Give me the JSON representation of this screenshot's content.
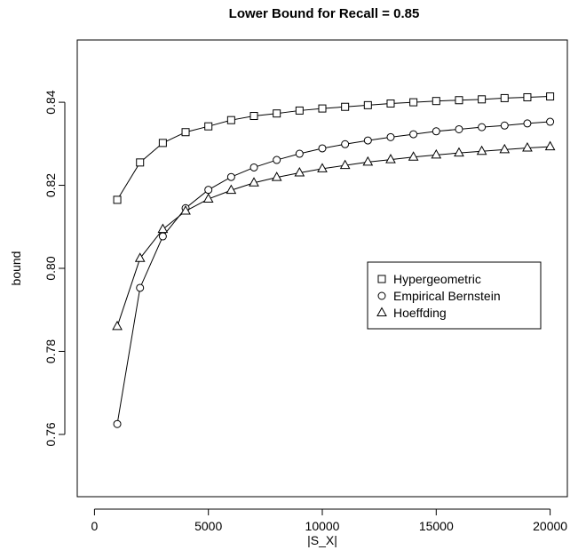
{
  "chart_data": {
    "type": "line",
    "title": "Lower Bound for Recall = 0.85",
    "xlabel": "|S_X|",
    "ylabel": "bound",
    "xlim": [
      0,
      20000
    ],
    "ylim": [
      0.745,
      0.855
    ],
    "x_ticks": [
      0,
      5000,
      10000,
      15000,
      20000
    ],
    "y_ticks": [
      0.76,
      0.78,
      0.8,
      0.82,
      0.84
    ],
    "x_tick_labels": [
      "0",
      "5000",
      "10000",
      "15000",
      "20000"
    ],
    "y_tick_labels": [
      "0.76",
      "0.78",
      "0.80",
      "0.82",
      "0.84"
    ],
    "grid": false,
    "legend_position": "center-right",
    "x": [
      1000,
      2000,
      3000,
      4000,
      5000,
      6000,
      7000,
      8000,
      9000,
      10000,
      11000,
      12000,
      13000,
      14000,
      15000,
      16000,
      17000,
      18000,
      19000,
      20000
    ],
    "series": [
      {
        "name": "Hypergeometric",
        "marker": "square",
        "values": [
          0.8165,
          0.8255,
          0.8302,
          0.8328,
          0.8342,
          0.8357,
          0.8367,
          0.8373,
          0.838,
          0.8385,
          0.8389,
          0.8393,
          0.8397,
          0.84,
          0.8403,
          0.8405,
          0.8407,
          0.841,
          0.8412,
          0.8414
        ]
      },
      {
        "name": "Empirical Bernstein",
        "marker": "circle",
        "values": [
          0.7625,
          0.7953,
          0.8077,
          0.8145,
          0.8189,
          0.822,
          0.8243,
          0.8261,
          0.8276,
          0.8289,
          0.8299,
          0.8308,
          0.8316,
          0.8323,
          0.833,
          0.8335,
          0.834,
          0.8344,
          0.8349,
          0.8353
        ]
      },
      {
        "name": "Hoeffding",
        "marker": "triangle",
        "values": [
          0.786,
          0.8024,
          0.8094,
          0.8138,
          0.8167,
          0.8188,
          0.8206,
          0.8219,
          0.823,
          0.824,
          0.8248,
          0.8256,
          0.8262,
          0.8268,
          0.8273,
          0.8278,
          0.8282,
          0.8286,
          0.829,
          0.8293
        ]
      }
    ]
  }
}
